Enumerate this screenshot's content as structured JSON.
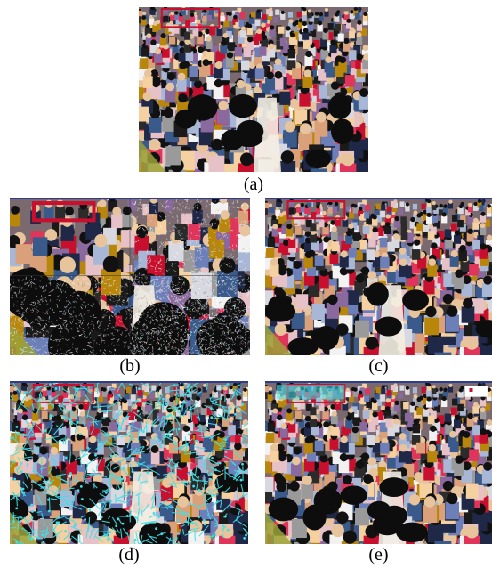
{
  "figure": {
    "panels": [
      {
        "id": "a",
        "caption": "(a)",
        "content": "crowd-photo"
      },
      {
        "id": "b",
        "caption": "(b)",
        "content": "wavelet-decomposition"
      },
      {
        "id": "c",
        "caption": "(c)",
        "content": "crowd-photo-reconstructed"
      },
      {
        "id": "d",
        "caption": "(d)",
        "content": "crowd-photo-with-feature-lines"
      },
      {
        "id": "e",
        "caption": "(e)",
        "content": "crowd-photo-with-detection"
      }
    ],
    "colors": {
      "border": "#2c3e8f",
      "feature_lines": "#3fe0e8",
      "banner_red": "#c8102e",
      "subband_background": "#000000"
    }
  }
}
